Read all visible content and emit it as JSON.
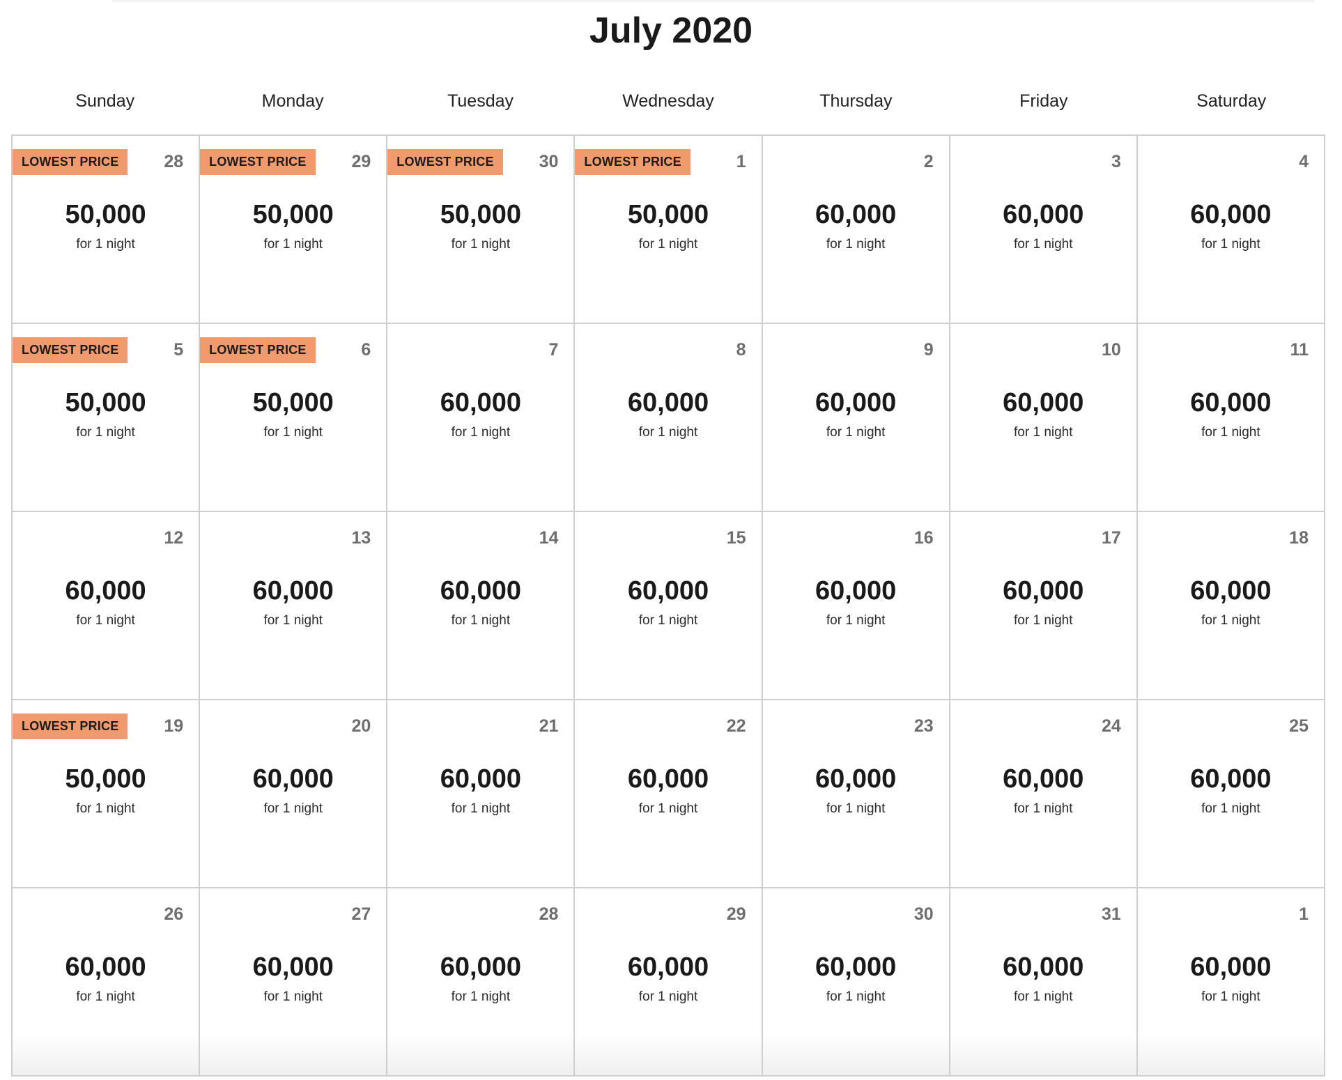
{
  "calendar": {
    "title": "July 2020",
    "weekdays": [
      "Sunday",
      "Monday",
      "Tuesday",
      "Wednesday",
      "Thursday",
      "Friday",
      "Saturday"
    ],
    "badge_color": "#f09a6e",
    "days": [
      {
        "day": "28",
        "price": "50,000",
        "sub": "for 1 night",
        "badge": "LOWEST PRICE"
      },
      {
        "day": "29",
        "price": "50,000",
        "sub": "for 1 night",
        "badge": "LOWEST PRICE"
      },
      {
        "day": "30",
        "price": "50,000",
        "sub": "for 1 night",
        "badge": "LOWEST PRICE"
      },
      {
        "day": "1",
        "price": "50,000",
        "sub": "for 1 night",
        "badge": "LOWEST PRICE"
      },
      {
        "day": "2",
        "price": "60,000",
        "sub": "for 1 night",
        "badge": ""
      },
      {
        "day": "3",
        "price": "60,000",
        "sub": "for 1 night",
        "badge": ""
      },
      {
        "day": "4",
        "price": "60,000",
        "sub": "for 1 night",
        "badge": ""
      },
      {
        "day": "5",
        "price": "50,000",
        "sub": "for 1 night",
        "badge": "LOWEST PRICE"
      },
      {
        "day": "6",
        "price": "50,000",
        "sub": "for 1 night",
        "badge": "LOWEST PRICE"
      },
      {
        "day": "7",
        "price": "60,000",
        "sub": "for 1 night",
        "badge": ""
      },
      {
        "day": "8",
        "price": "60,000",
        "sub": "for 1 night",
        "badge": ""
      },
      {
        "day": "9",
        "price": "60,000",
        "sub": "for 1 night",
        "badge": ""
      },
      {
        "day": "10",
        "price": "60,000",
        "sub": "for 1 night",
        "badge": ""
      },
      {
        "day": "11",
        "price": "60,000",
        "sub": "for 1 night",
        "badge": ""
      },
      {
        "day": "12",
        "price": "60,000",
        "sub": "for 1 night",
        "badge": ""
      },
      {
        "day": "13",
        "price": "60,000",
        "sub": "for 1 night",
        "badge": ""
      },
      {
        "day": "14",
        "price": "60,000",
        "sub": "for 1 night",
        "badge": ""
      },
      {
        "day": "15",
        "price": "60,000",
        "sub": "for 1 night",
        "badge": ""
      },
      {
        "day": "16",
        "price": "60,000",
        "sub": "for 1 night",
        "badge": ""
      },
      {
        "day": "17",
        "price": "60,000",
        "sub": "for 1 night",
        "badge": ""
      },
      {
        "day": "18",
        "price": "60,000",
        "sub": "for 1 night",
        "badge": ""
      },
      {
        "day": "19",
        "price": "50,000",
        "sub": "for 1 night",
        "badge": "LOWEST PRICE"
      },
      {
        "day": "20",
        "price": "60,000",
        "sub": "for 1 night",
        "badge": ""
      },
      {
        "day": "21",
        "price": "60,000",
        "sub": "for 1 night",
        "badge": ""
      },
      {
        "day": "22",
        "price": "60,000",
        "sub": "for 1 night",
        "badge": ""
      },
      {
        "day": "23",
        "price": "60,000",
        "sub": "for 1 night",
        "badge": ""
      },
      {
        "day": "24",
        "price": "60,000",
        "sub": "for 1 night",
        "badge": ""
      },
      {
        "day": "25",
        "price": "60,000",
        "sub": "for 1 night",
        "badge": ""
      },
      {
        "day": "26",
        "price": "60,000",
        "sub": "for 1 night",
        "badge": ""
      },
      {
        "day": "27",
        "price": "60,000",
        "sub": "for 1 night",
        "badge": ""
      },
      {
        "day": "28",
        "price": "60,000",
        "sub": "for 1 night",
        "badge": ""
      },
      {
        "day": "29",
        "price": "60,000",
        "sub": "for 1 night",
        "badge": ""
      },
      {
        "day": "30",
        "price": "60,000",
        "sub": "for 1 night",
        "badge": ""
      },
      {
        "day": "31",
        "price": "60,000",
        "sub": "for 1 night",
        "badge": ""
      },
      {
        "day": "1",
        "price": "60,000",
        "sub": "for 1 night",
        "badge": ""
      }
    ]
  }
}
